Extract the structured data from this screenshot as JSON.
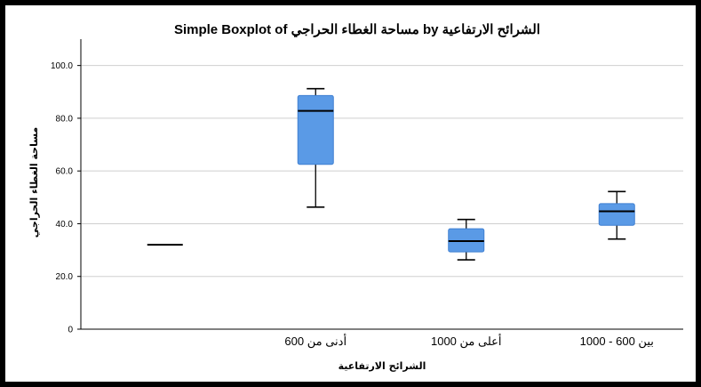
{
  "chart_data": {
    "type": "boxplot",
    "title": "الشرائح الارتفاعية by مساحة الغطاء الحراجي Simple Boxplot of",
    "xlabel": "الشرائح الارتفاعية",
    "ylabel": "مساحة الغطاء الحراجي",
    "ylim": [
      0,
      110
    ],
    "yticks": [
      "0",
      "20.0",
      "40.0",
      "60.0",
      "80.0",
      "100.0"
    ],
    "ytick_values": [
      0,
      20,
      40,
      60,
      80,
      100
    ],
    "grid": true,
    "categories": [
      "",
      "أدنى من 600",
      "أعلى من 1000",
      "بين 600 - 1000"
    ],
    "boxes": [
      {
        "category": "",
        "min": 32.0,
        "q1": 32.0,
        "median": 32.0,
        "q3": 32.0,
        "max": 32.0
      },
      {
        "category": "أدنى من 600",
        "min": 46.3,
        "q1": 62.5,
        "median": 82.8,
        "q3": 88.6,
        "max": 91.2
      },
      {
        "category": "أعلى من 1000",
        "min": 26.3,
        "q1": 29.3,
        "median": 33.4,
        "q3": 38.1,
        "max": 41.6
      },
      {
        "category": "بين 600 - 1000",
        "min": 34.2,
        "q1": 39.4,
        "median": 44.7,
        "q3": 47.6,
        "max": 52.2
      }
    ],
    "colors": {
      "box_fill": "#5a9ae6",
      "box_stroke": "#3f7fd1",
      "whisker": "#000000",
      "grid": "#cfcfcf",
      "frame": "#000000"
    }
  }
}
